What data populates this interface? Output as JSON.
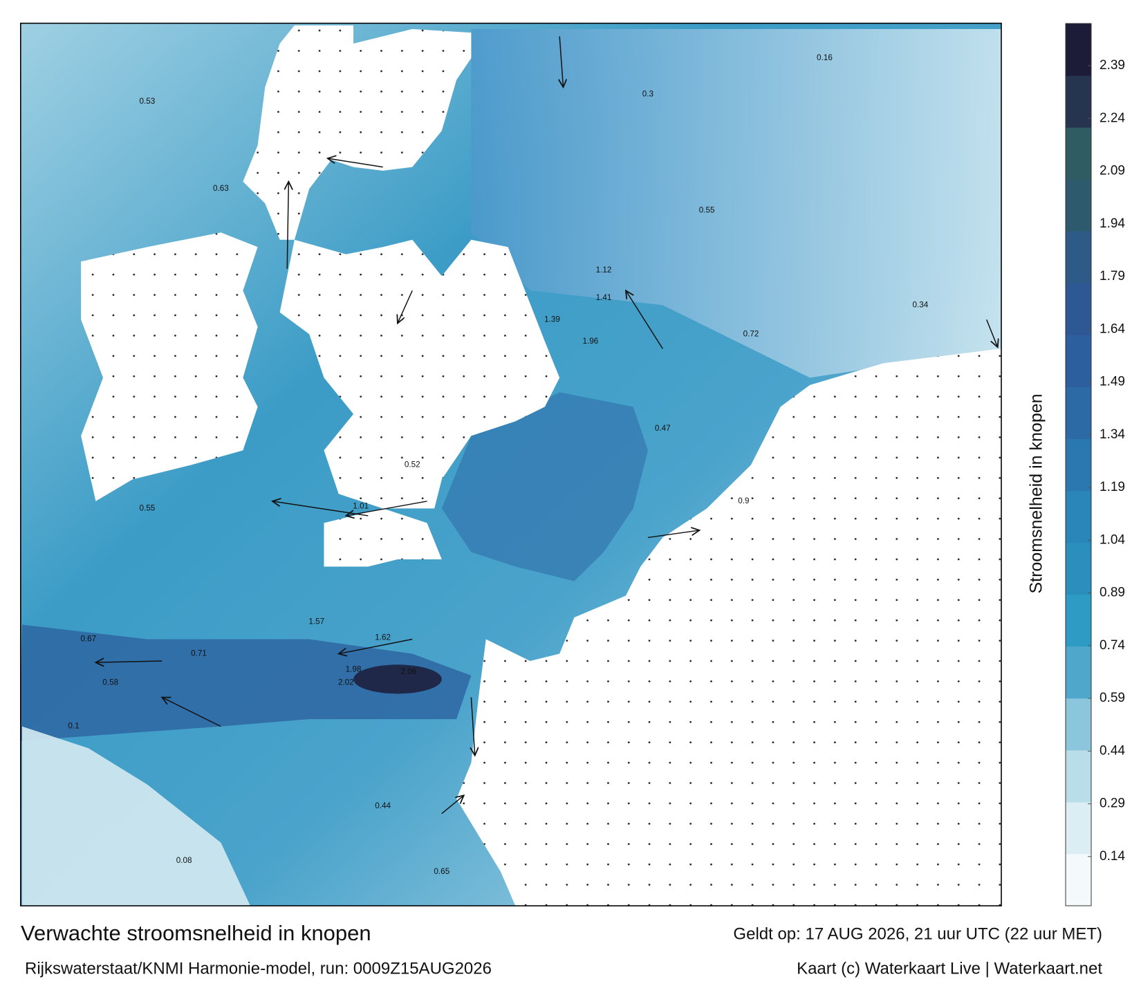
{
  "title": "Verwachte stroomsnelheid in knopen",
  "subtitle": "Rijkswaterstaat/KNMI Harmonie-model, run: 0009Z15AUG2026",
  "valid": "Geldt op: 17 AUG 2026, 21 uur UTC (22 uur MET)",
  "credit": "Kaart (c) Waterkaart Live | Waterkaart.net",
  "colorbar": {
    "label": "Stroomsnelheid in knopen",
    "lim": [
      0,
      2.51
    ],
    "ticks": [
      0.14,
      0.29,
      0.44,
      0.59,
      0.74,
      0.89,
      1.04,
      1.19,
      1.34,
      1.49,
      1.64,
      1.79,
      1.94,
      2.09,
      2.24,
      2.39
    ],
    "colors": [
      "#f4f9fb",
      "#dcedf3",
      "#b9dde9",
      "#8cc6dc",
      "#4fa8cb",
      "#2d9bc4",
      "#2a8fbd",
      "#2a86b8",
      "#2b78b0",
      "#2c6aa6",
      "#2d5f9f",
      "#2e5894",
      "#2d5a86",
      "#2e5a6e",
      "#2f5c63",
      "#26344f",
      "#1c1c38"
    ]
  },
  "current_labels": [
    2.02,
    1.98,
    2.06,
    1.57,
    1.62,
    1.01,
    1.12,
    1.41,
    1.96,
    1.39,
    0.55,
    0.67,
    0.58,
    0.71,
    0.52,
    0.47,
    0.72,
    0.55,
    0.16,
    0.3,
    0.63,
    0.53,
    0.65,
    0.44,
    0.1,
    0.08,
    0.34,
    0.9
  ]
}
